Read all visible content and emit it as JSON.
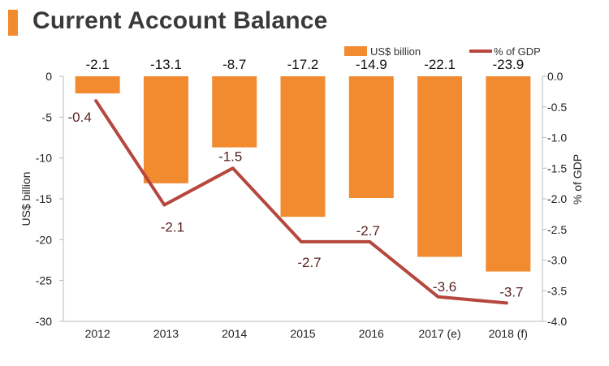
{
  "title": "Current Account Balance",
  "colors": {
    "bar": "#f28a30",
    "line": "#b5473e",
    "title_accent": "#f28a30"
  },
  "chart_data": {
    "type": "bar",
    "categories": [
      "2012",
      "2013",
      "2014",
      "2015",
      "2016",
      "2017 (e)",
      "2018 (f)"
    ],
    "series": [
      {
        "name": "US$ billion",
        "type": "bar",
        "axis": "left",
        "values": [
          -2.1,
          -13.1,
          -8.7,
          -17.2,
          -14.9,
          -22.1,
          -23.9
        ],
        "labels": [
          "-2.1",
          "-13.1",
          "-8.7",
          "-17.2",
          "-14.9",
          "-22.1",
          "-23.9"
        ]
      },
      {
        "name": "% of GDP",
        "type": "line",
        "axis": "right",
        "values": [
          -0.4,
          -2.1,
          -1.5,
          -2.7,
          -2.7,
          -3.6,
          -3.7
        ],
        "labels": [
          "-0.4",
          "-2.1",
          "-1.5",
          "-2.7",
          "-2.7",
          "-3.6",
          "-3.7"
        ]
      }
    ],
    "ylabel": "US$ billion",
    "y2label": "% of GDP",
    "ylim": [
      -30,
      0
    ],
    "y2lim": [
      -4.0,
      0.0
    ],
    "yticks": [
      "0",
      "-5",
      "-10",
      "-15",
      "-20",
      "-25",
      "-30"
    ],
    "y2ticks": [
      "0.0",
      "-0.5",
      "-1.0",
      "-1.5",
      "-2.0",
      "-2.5",
      "-3.0",
      "-3.5",
      "-4.0"
    ],
    "legend": "top-right",
    "grid": false
  }
}
